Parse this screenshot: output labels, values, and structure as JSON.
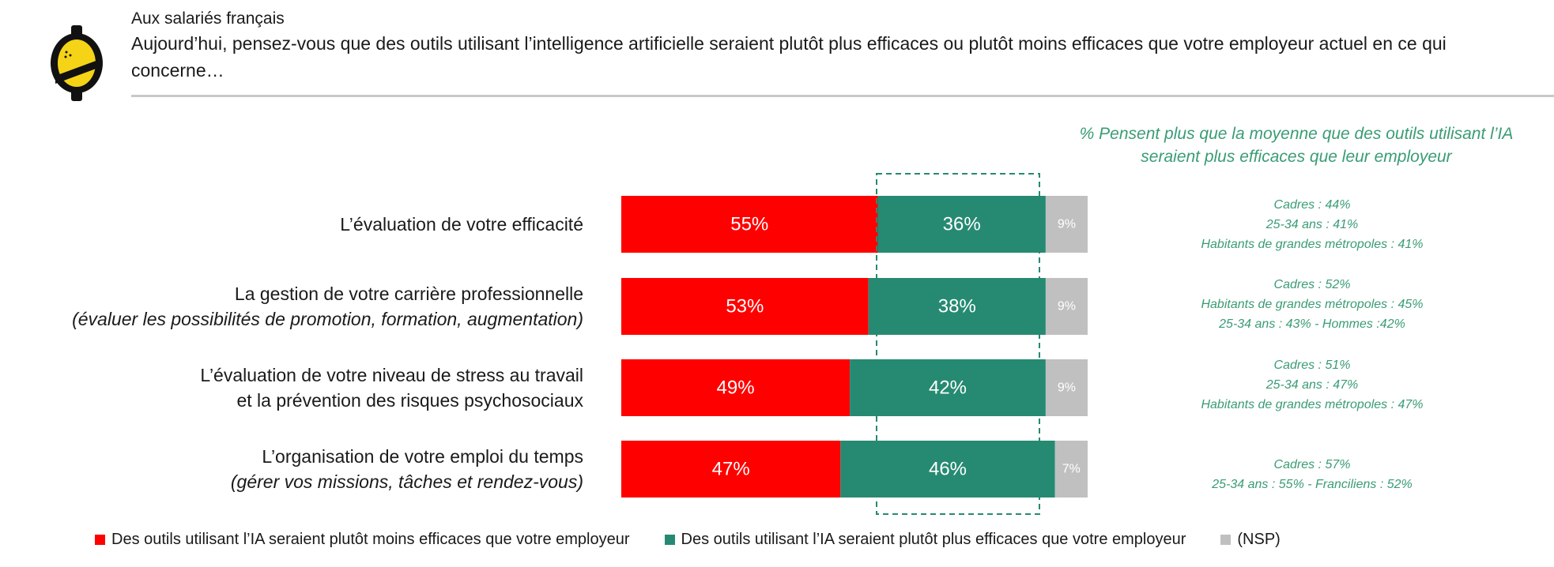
{
  "header": {
    "audience": "Aux salariés français",
    "question": "Aujourd’hui, pensez-vous que des outils utilisant l’intelligence artificielle seraient plutôt plus efficaces ou plutôt moins efficaces que votre employeur actuel en ce qui concerne…"
  },
  "side": {
    "title": "% Pensent plus que la moyenne que des outils utilisant l’IA seraient plus efficaces que leur employeur"
  },
  "categories": [
    {
      "main": "L’évaluation de votre efficacité",
      "sub": "",
      "note": [
        "Cadres : 44%",
        "25-34 ans : 41%",
        "Habitants de grandes métropoles : 41%"
      ]
    },
    {
      "main": "La gestion de votre carrière professionnelle",
      "sub": "(évaluer les possibilités de promotion, formation, augmentation)",
      "note": [
        "Cadres : 52%",
        "Habitants de grandes métropoles : 45%",
        "25-34 ans : 43% - Hommes :42%"
      ]
    },
    {
      "main": "L’évaluation de votre niveau de stress au travail",
      "sub": "et la prévention des risques psychosociaux",
      "sub_italic": false,
      "note": [
        "Cadres : 51%",
        "25-34 ans : 47%",
        "Habitants de grandes métropoles : 47%"
      ]
    },
    {
      "main": "L’organisation de votre emploi du temps",
      "sub": "(gérer vos missions, tâches et rendez-vous)",
      "note": [
        "Cadres : 57%",
        "25-34 ans : 55% - Franciliens : 52%"
      ]
    }
  ],
  "chart_data": {
    "type": "bar",
    "stacked": true,
    "orientation": "horizontal",
    "categories": [
      "L’évaluation de votre efficacité",
      "La gestion de votre carrière professionnelle",
      "L’évaluation de votre niveau de stress au travail et la prévention des risques psychosociaux",
      "L’organisation de votre emploi du temps"
    ],
    "series": [
      {
        "name": "Des outils utilisant l’IA seraient plutôt moins efficaces que votre employeur",
        "color": "#ff0000",
        "values": [
          55,
          53,
          49,
          47
        ],
        "labels": [
          "55%",
          "53%",
          "49%",
          "47%"
        ]
      },
      {
        "name": "Des outils utilisant l’IA seraient plutôt plus efficaces que votre employeur",
        "color": "#268a72",
        "values": [
          36,
          38,
          42,
          46
        ],
        "labels": [
          "36%",
          "38%",
          "42%",
          "46%"
        ]
      },
      {
        "name": "(NSP)",
        "color": "#c0c0c0",
        "values": [
          9,
          9,
          9,
          7
        ],
        "labels": [
          "9%",
          "9%",
          "9%",
          "7%"
        ]
      }
    ],
    "xlim": [
      0,
      100
    ],
    "highlight": "dashed box around the green segments",
    "legend_position": "bottom"
  }
}
